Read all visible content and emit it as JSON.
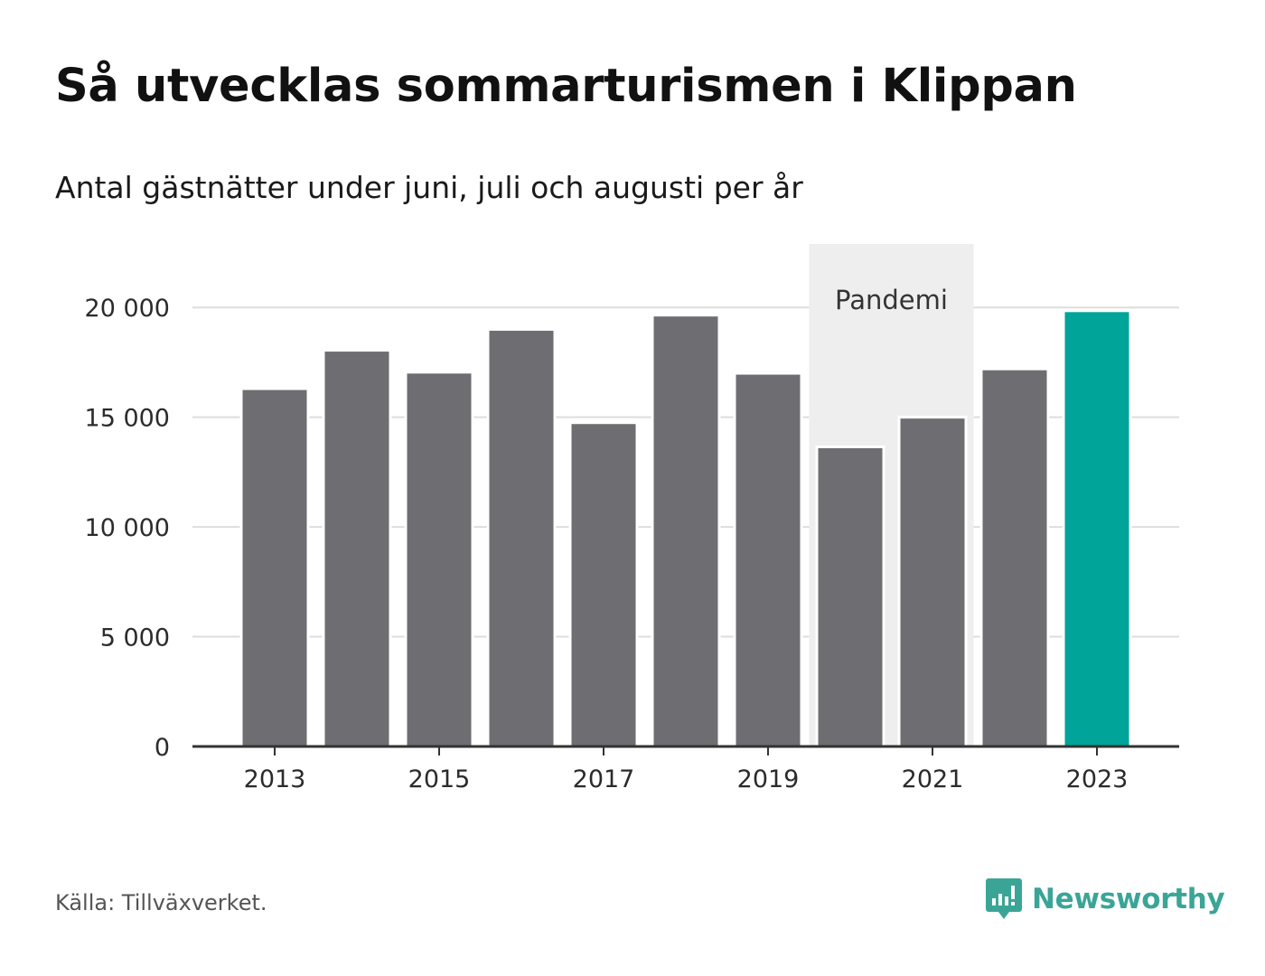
{
  "header": {
    "title": "Så utvecklas sommarturismen i Klippan",
    "subtitle": "Antal gästnätter under juni, juli och augusti per år"
  },
  "chart_data": {
    "type": "bar",
    "categories": [
      "2013",
      "2014",
      "2015",
      "2016",
      "2017",
      "2018",
      "2019",
      "2020",
      "2021",
      "2022",
      "2023"
    ],
    "values": [
      16300,
      18050,
      17050,
      19000,
      14750,
      19650,
      17000,
      13650,
      15000,
      17200,
      19850
    ],
    "x_tick_labels": [
      "2013",
      "2015",
      "2017",
      "2019",
      "2021",
      "2023"
    ],
    "y_ticks": [
      0,
      5000,
      10000,
      15000,
      20000
    ],
    "y_tick_labels": [
      "0",
      "5 000",
      "10 000",
      "15 000",
      "20 000"
    ],
    "ylim": [
      0,
      22890
    ],
    "grid": true,
    "highlight_category": "2023",
    "annotation_band": {
      "label": "Pandemi",
      "from": "2020",
      "to": "2021"
    },
    "colors": {
      "bar": "#6e6d72",
      "highlight": "#00a499",
      "band": "#eeeeee",
      "grid": "#dddddd",
      "axis": "#333333"
    }
  },
  "footer": {
    "source": "Källa: Tillväxverket.",
    "brand": "Newsworthy",
    "brand_icon": "newsworthy-logo-icon",
    "brand_color": "#3aa597"
  }
}
